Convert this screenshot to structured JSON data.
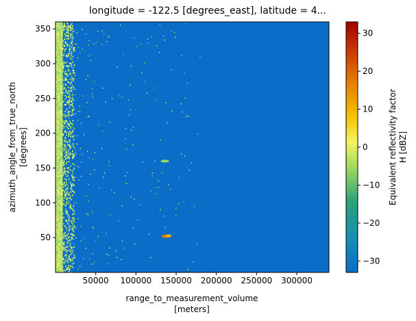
{
  "chart_data": {
    "type": "heatmap",
    "title": "longitude = -122.5 [degrees_east], latitude = 4...",
    "xlabel_line1": "range_to_measurement_volume",
    "xlabel_line2": "[meters]",
    "ylabel_line1": "azimuth_angle_from_true_north",
    "ylabel_line2": "[degrees]",
    "colorbar_label_line1": "Equivalent reflectivity factor",
    "colorbar_label_line2": "H [dBZ]",
    "xlim": [
      0,
      340000
    ],
    "ylim": [
      0,
      360
    ],
    "x_ticks": [
      50000,
      100000,
      150000,
      200000,
      250000,
      300000
    ],
    "x_tick_labels": [
      "50000",
      "100000",
      "150000",
      "200000",
      "250000",
      "300000"
    ],
    "y_ticks": [
      50,
      100,
      150,
      200,
      250,
      300,
      350
    ],
    "y_tick_labels": [
      "50",
      "100",
      "150",
      "200",
      "250",
      "300",
      "350"
    ],
    "colorbar_range": [
      -33,
      33
    ],
    "colorbar_ticks": [
      -30,
      -20,
      -10,
      0,
      10,
      20,
      30
    ],
    "colorbar_tick_labels": [
      "−30",
      "−20",
      "−10",
      "0",
      "10",
      "20",
      "30"
    ],
    "colormap": [
      "#0a6ec8",
      "#2aa37b",
      "#9fd95f",
      "#f3f461",
      "#f5c300",
      "#e67c00",
      "#c43200",
      "#a30000"
    ],
    "background_value_dbz": -32,
    "features": [
      {
        "name": "near-range clutter band",
        "x_range": [
          0,
          20000
        ],
        "y_range": [
          0,
          360
        ],
        "dbz": -10
      },
      {
        "name": "echo",
        "x": 138000,
        "y": 52,
        "dbz": 8
      },
      {
        "name": "echo",
        "x": 136000,
        "y": 160,
        "dbz": -12
      }
    ]
  }
}
